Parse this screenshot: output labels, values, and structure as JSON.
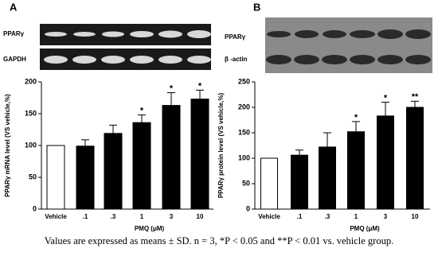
{
  "chart_data": [
    {
      "type": "bar",
      "panel_label": "A",
      "blot_labels": [
        "PPARγ",
        "GAPDH"
      ],
      "y_label": "PPARγ mRNA level (VS vehicle,%)",
      "x_label": "PMQ (μM)",
      "categories": [
        "Vehicle",
        ".1",
        ".3",
        "1",
        "3",
        "10"
      ],
      "values": [
        100,
        99,
        119,
        136,
        163,
        173
      ],
      "errors": [
        null,
        10,
        13,
        12,
        20,
        14
      ],
      "significance": [
        null,
        null,
        null,
        "*",
        "*",
        "*"
      ],
      "colors": [
        "#ffffff",
        "#000000",
        "#000000",
        "#000000",
        "#000000",
        "#000000"
      ],
      "ylim": [
        0,
        200
      ],
      "yticks": [
        0,
        50,
        100,
        150,
        200
      ]
    },
    {
      "type": "bar",
      "panel_label": "B",
      "blot_labels": [
        "PPARγ",
        "β -actin"
      ],
      "y_label": "PPARγ protein level (VS vehicle,%)",
      "x_label": "PMQ (μM)",
      "categories": [
        "Vehicle",
        ".1",
        ".3",
        "1",
        "3",
        "10"
      ],
      "values": [
        100,
        106,
        122,
        152,
        183,
        200
      ],
      "errors": [
        null,
        10,
        28,
        20,
        27,
        12
      ],
      "significance": [
        null,
        null,
        null,
        "*",
        "*",
        "**"
      ],
      "colors": [
        "#ffffff",
        "#000000",
        "#000000",
        "#000000",
        "#000000",
        "#000000"
      ],
      "ylim": [
        0,
        250
      ],
      "yticks": [
        0,
        50,
        100,
        150,
        200,
        250
      ]
    }
  ],
  "caption": "Values are expressed as means ± SD. n = 3, *P < 0.05 and **P < 0.01 vs. vehicle group."
}
